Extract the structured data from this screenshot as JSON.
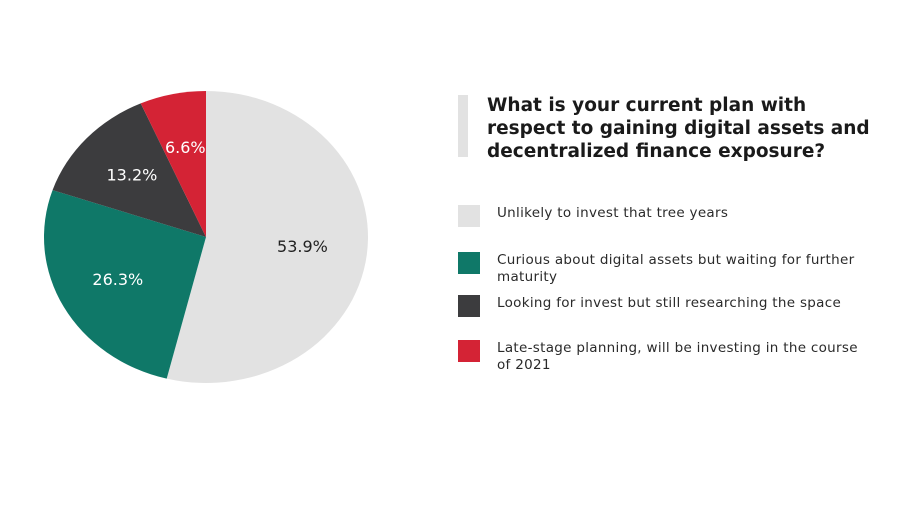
{
  "chart_data": {
    "type": "pie",
    "title": "What is your current plan with respect to gaining digital assets and decentralized finance exposure?",
    "categories": [
      "Unlikely to invest that tree years",
      "Curious about digital assets but waiting for further maturity",
      "Looking for invest but still researching the space",
      "Late-stage planning, will be investing in the course of 2021"
    ],
    "values": [
      53.9,
      26.3,
      13.2,
      6.6
    ],
    "value_labels": [
      "53.9%",
      "26.3%",
      "13.2%",
      "6.6%"
    ],
    "colors": [
      "#e2e2e2",
      "#0f7868",
      "#3c3c3e",
      "#d42335"
    ]
  }
}
